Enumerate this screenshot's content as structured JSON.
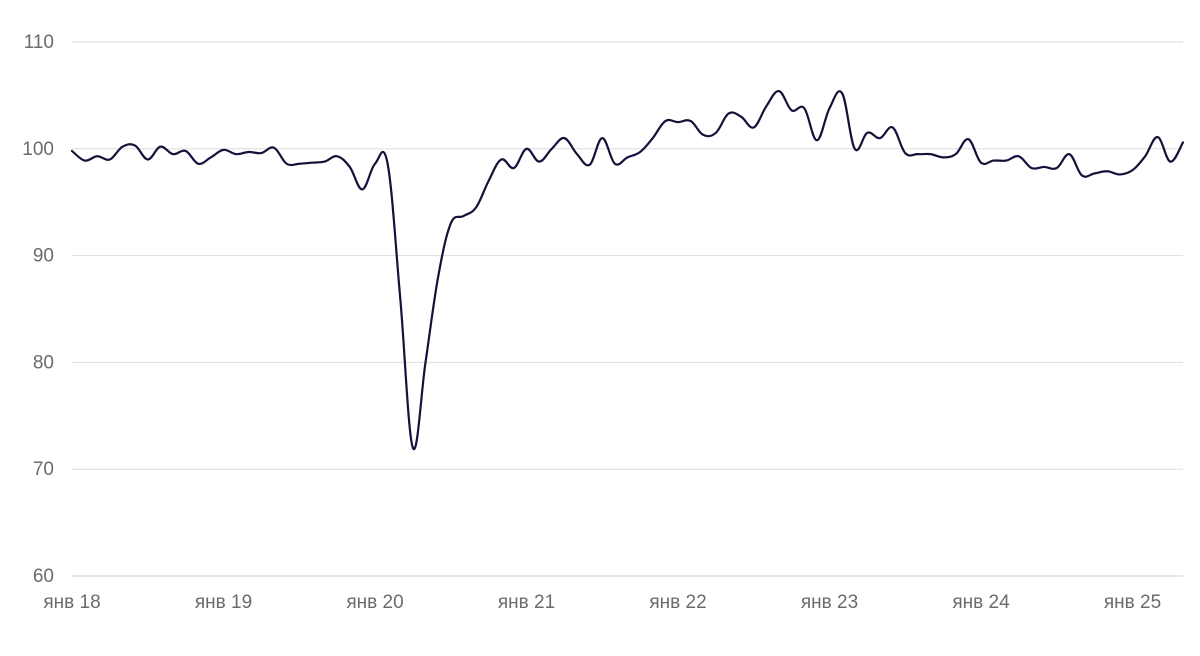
{
  "chart_data": {
    "type": "line",
    "title": "",
    "xlabel": "",
    "ylabel": "",
    "ylim": [
      60,
      110
    ],
    "yticks": [
      60,
      70,
      80,
      90,
      100,
      110
    ],
    "xticks": [
      {
        "x": 0,
        "label": "янв 18"
      },
      {
        "x": 12,
        "label": "янв 19"
      },
      {
        "x": 24,
        "label": "янв 20"
      },
      {
        "x": 36,
        "label": "янв 21"
      },
      {
        "x": 48,
        "label": "янв 22"
      },
      {
        "x": 60,
        "label": "янв 23"
      },
      {
        "x": 72,
        "label": "янв 24"
      },
      {
        "x": 84,
        "label": "янв 25"
      }
    ],
    "xlim": [
      0,
      88
    ],
    "grid": true,
    "legend": "none",
    "colors": {
      "series": "#14123a",
      "grid": "#dddddd",
      "tick_text": "#6b6b6b"
    },
    "series": [
      {
        "values": [
          99.8,
          98.9,
          99.3,
          99.0,
          100.2,
          100.3,
          99.0,
          100.2,
          99.5,
          99.8,
          98.6,
          99.2,
          99.9,
          99.5,
          99.7,
          99.6,
          100.1,
          98.6,
          98.6,
          98.7,
          98.8,
          99.3,
          98.3,
          96.2,
          98.6,
          98.6,
          86.0,
          72.0,
          80.0,
          88.0,
          93.0,
          93.7,
          94.5,
          97.0,
          99.0,
          98.2,
          100.0,
          98.8,
          100.0,
          101.0,
          99.5,
          98.5,
          101.0,
          98.6,
          99.2,
          99.7,
          101.0,
          102.6,
          102.5,
          102.6,
          101.3,
          101.5,
          103.3,
          103.0,
          102.0,
          104.0,
          105.4,
          103.6,
          103.8,
          100.8,
          103.8,
          105.2,
          100.0,
          101.5,
          101.0,
          102.0,
          99.6,
          99.5,
          99.5,
          99.2,
          99.5,
          100.9,
          98.7,
          98.9,
          98.9,
          99.3,
          98.2,
          98.3,
          98.2,
          99.5,
          97.5,
          97.7,
          97.9,
          97.6,
          98.0,
          99.3,
          101.1,
          98.8,
          100.6
        ]
      }
    ]
  }
}
